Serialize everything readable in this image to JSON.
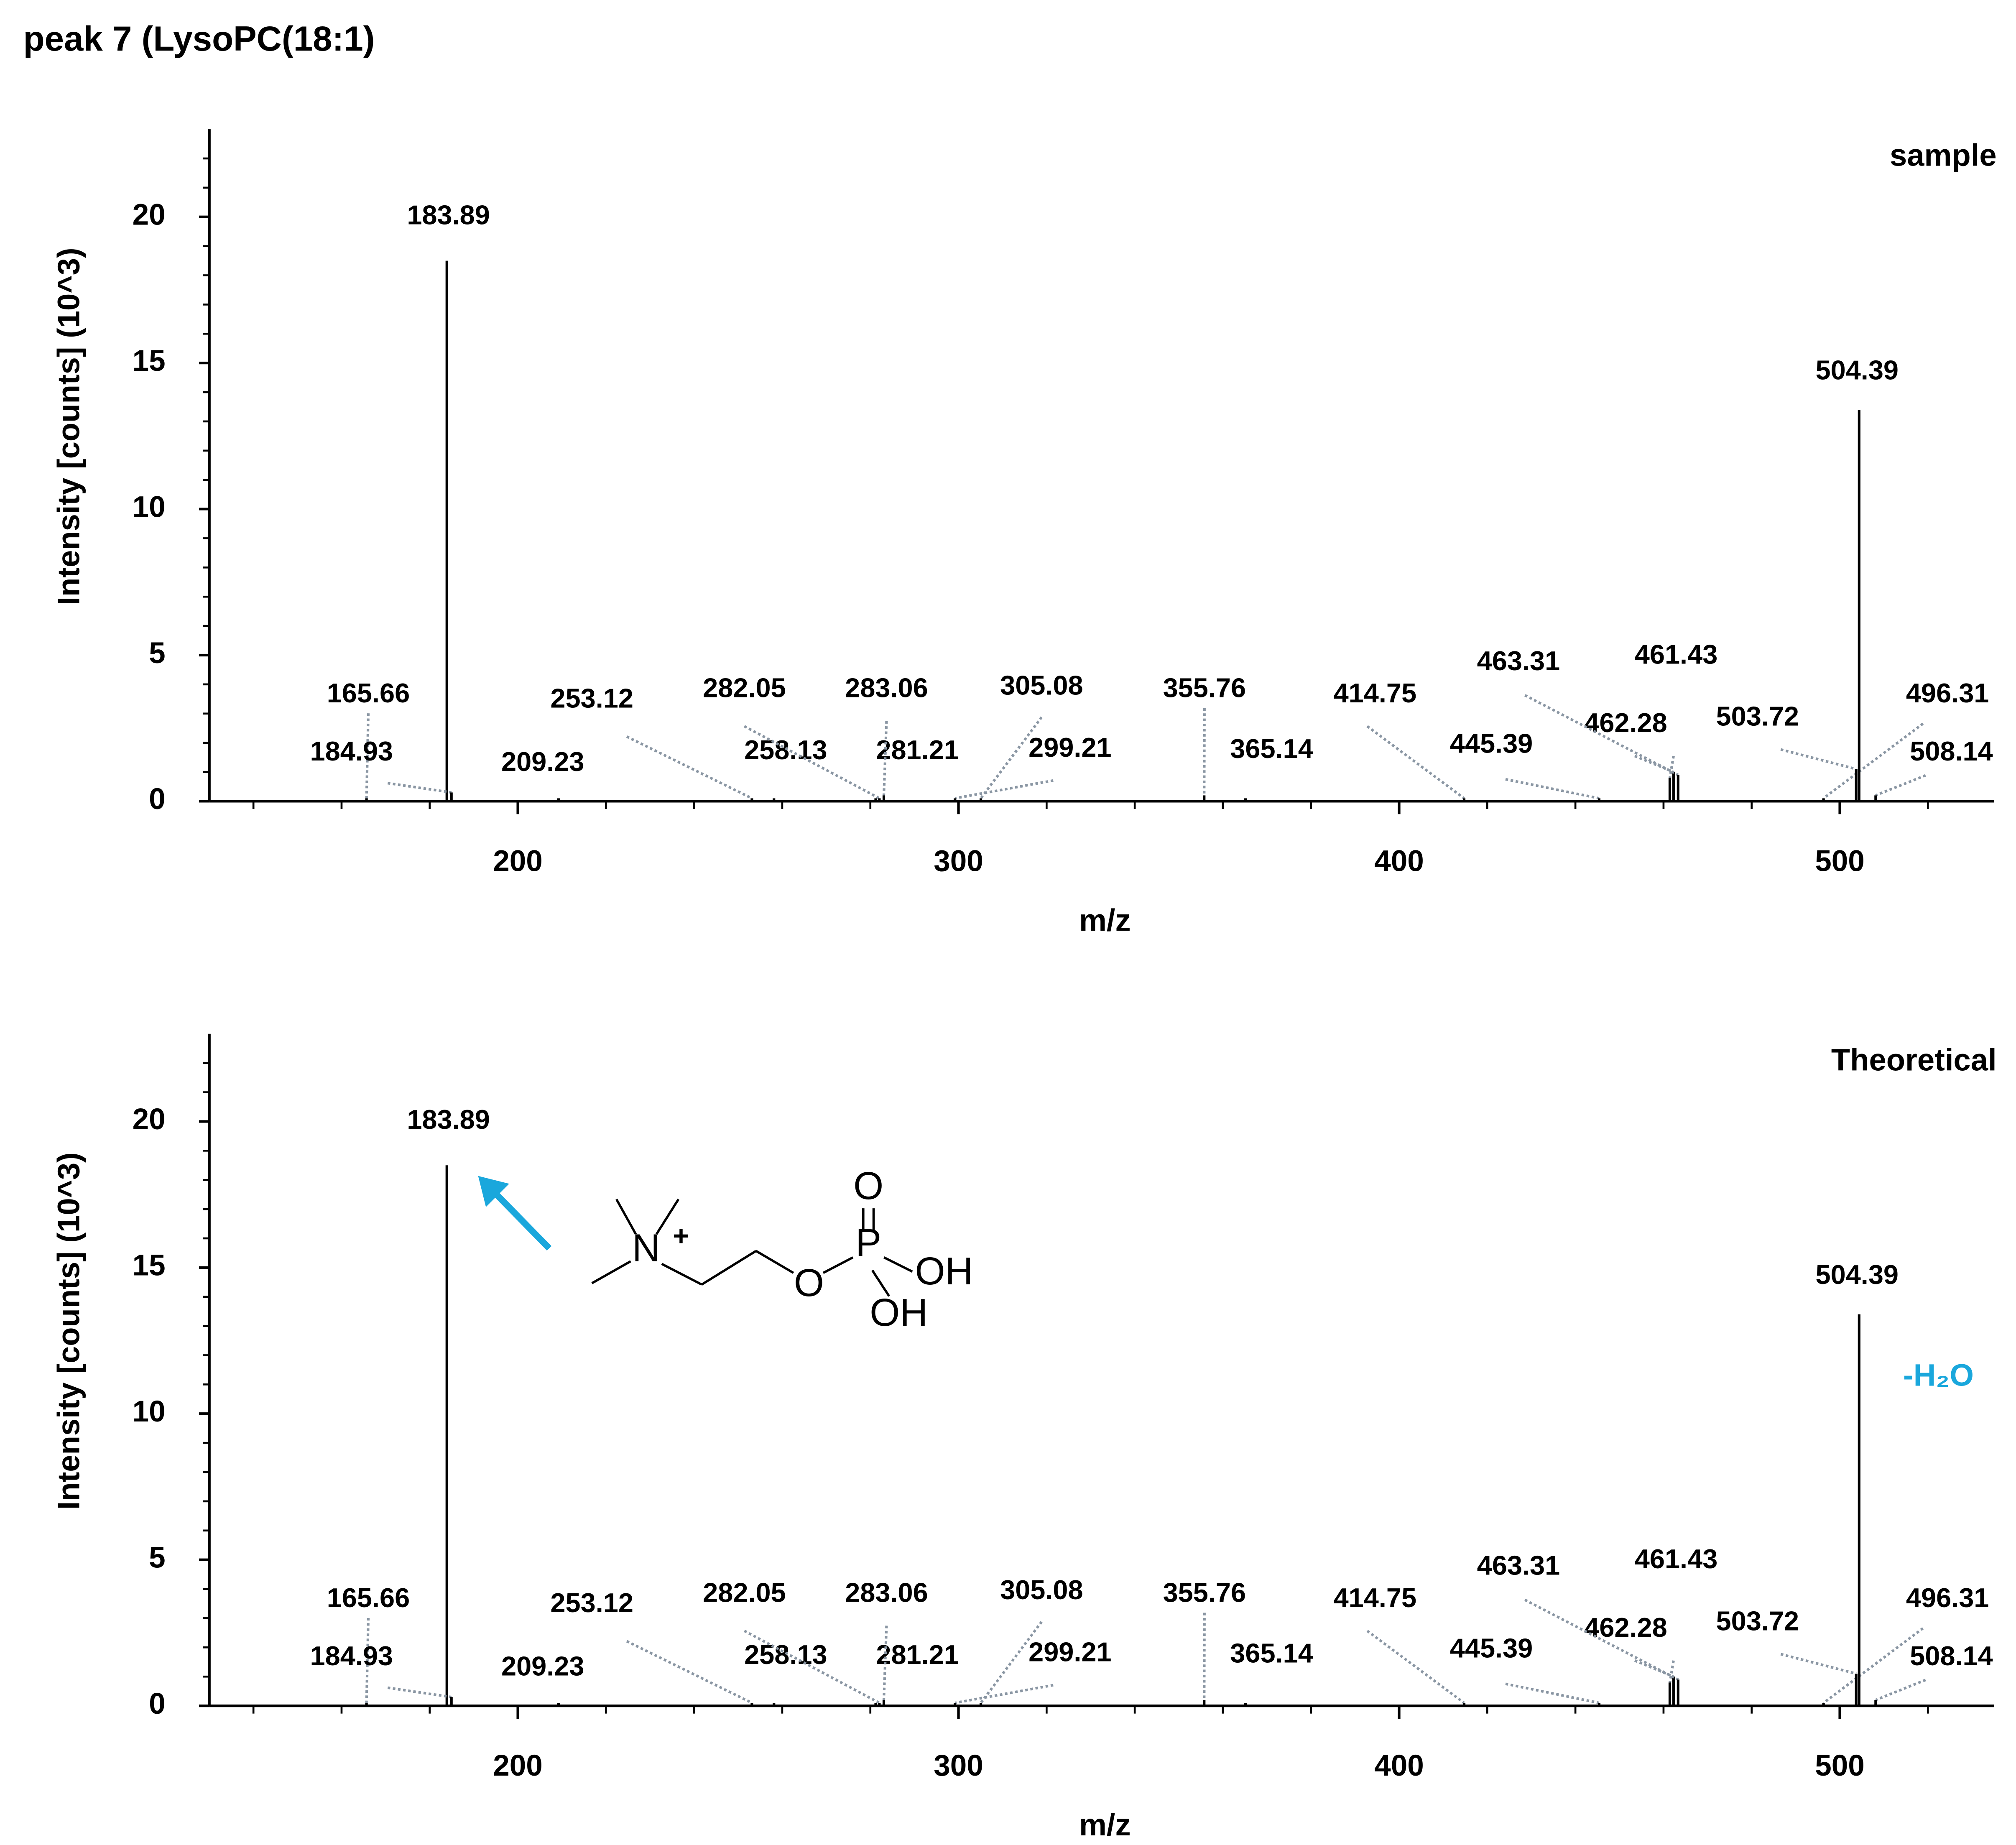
{
  "title": "peak 7 (LysoPC(18:1)",
  "chart_data": [
    {
      "type": "bar",
      "panel_label": "sample",
      "x": [
        165.66,
        183.89,
        184.93,
        209.23,
        253.12,
        258.13,
        281.21,
        282.05,
        283.06,
        299.21,
        305.08,
        355.76,
        365.14,
        414.75,
        445.39,
        461.43,
        462.28,
        463.31,
        496.31,
        503.72,
        504.39,
        508.14
      ],
      "values": [
        0.1,
        18.5,
        0.3,
        0.1,
        0.1,
        0.1,
        0.1,
        0.1,
        0.2,
        0.1,
        0.1,
        0.2,
        0.1,
        0.1,
        0.1,
        0.8,
        1.0,
        0.9,
        0.1,
        1.1,
        13.4,
        0.2
      ],
      "color": "#000000",
      "xlabel": "m/z",
      "ylabel": "Intensity [counts] (10^3)",
      "xlim": [
        130,
        535
      ],
      "ylim": [
        0,
        23
      ],
      "xticks": [
        200,
        300,
        400,
        500
      ],
      "yticks": [
        0,
        5,
        10,
        15,
        20
      ],
      "xminorticks": [
        140,
        160,
        180,
        220,
        240,
        260,
        280,
        320,
        340,
        360,
        380,
        420,
        440,
        460,
        480,
        520
      ],
      "yminorticks": [
        1,
        2,
        3,
        4,
        6,
        7,
        8,
        9,
        11,
        12,
        13,
        14,
        16,
        17,
        18,
        19,
        21,
        22
      ]
    },
    {
      "type": "bar",
      "panel_label": "Theoretical",
      "x": [
        165.66,
        183.89,
        184.93,
        209.23,
        253.12,
        258.13,
        281.21,
        282.05,
        283.06,
        299.21,
        305.08,
        355.76,
        365.14,
        414.75,
        445.39,
        461.43,
        462.28,
        463.31,
        496.31,
        503.72,
        504.39,
        508.14
      ],
      "values": [
        0.1,
        18.5,
        0.3,
        0.1,
        0.1,
        0.1,
        0.1,
        0.1,
        0.2,
        0.1,
        0.1,
        0.2,
        0.1,
        0.1,
        0.1,
        0.8,
        1.0,
        0.9,
        0.1,
        1.1,
        13.4,
        0.2
      ],
      "color": "#000000",
      "xlabel": "m/z",
      "ylabel": "Intensity [counts] (10^3)",
      "xlim": [
        130,
        535
      ],
      "ylim": [
        0,
        23
      ],
      "xticks": [
        200,
        300,
        400,
        500
      ],
      "yticks": [
        0,
        5,
        10,
        15,
        20
      ],
      "xminorticks": [
        140,
        160,
        180,
        220,
        240,
        260,
        280,
        320,
        340,
        360,
        380,
        420,
        440,
        460,
        480,
        520
      ],
      "yminorticks": [
        1,
        2,
        3,
        4,
        6,
        7,
        8,
        9,
        11,
        12,
        13,
        14,
        16,
        17,
        18,
        19,
        21,
        22
      ],
      "annotation": "-H₂O",
      "structure": {
        "n": "N",
        "charge": "+",
        "o1": "O",
        "p": "P",
        "o2": "O",
        "oh1": "OH",
        "oh2": "OH"
      }
    }
  ]
}
